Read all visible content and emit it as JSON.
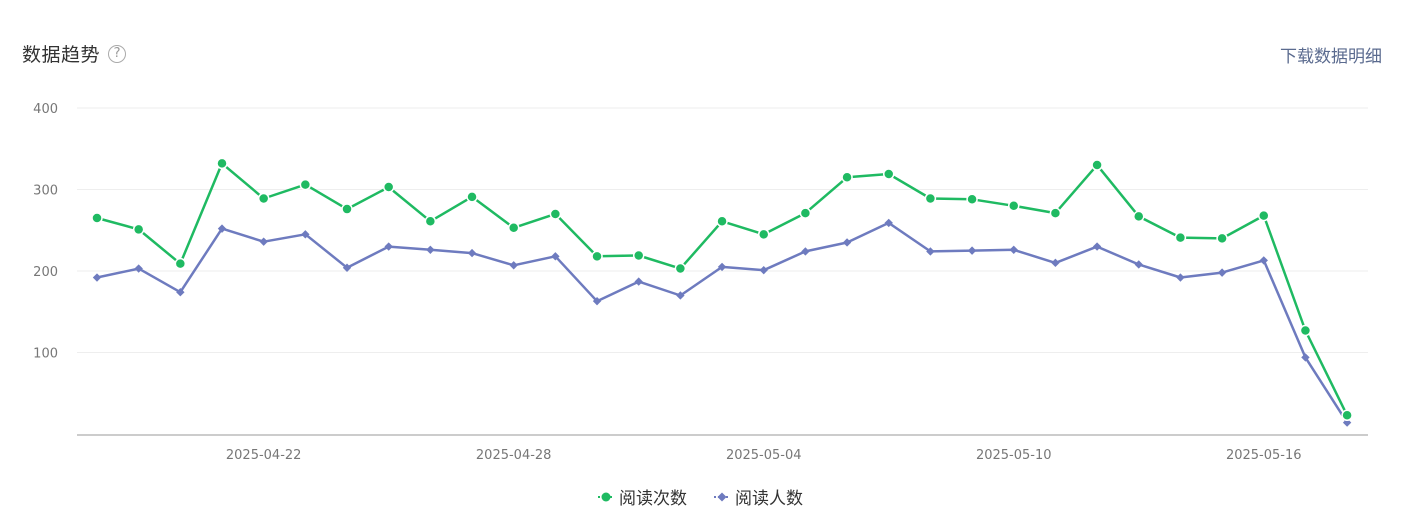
{
  "header": {
    "title": "数据趋势",
    "help_glyph": "?",
    "download_label": "下载数据明细"
  },
  "colors": {
    "series1": "#1fba62",
    "series2": "#6e7bbf",
    "grid": "#eeeeee",
    "axis": "#cccccc"
  },
  "chart_data": {
    "type": "line",
    "x": [
      "2025-04-18",
      "2025-04-19",
      "2025-04-20",
      "2025-04-21",
      "2025-04-22",
      "2025-04-23",
      "2025-04-24",
      "2025-04-25",
      "2025-04-26",
      "2025-04-27",
      "2025-04-28",
      "2025-04-29",
      "2025-04-30",
      "2025-05-01",
      "2025-05-02",
      "2025-05-03",
      "2025-05-04",
      "2025-05-05",
      "2025-05-06",
      "2025-05-07",
      "2025-05-08",
      "2025-05-09",
      "2025-05-10",
      "2025-05-11",
      "2025-05-12",
      "2025-05-13",
      "2025-05-14",
      "2025-05-15",
      "2025-05-16",
      "2025-05-17",
      "2025-05-18"
    ],
    "x_tick_labels": [
      "2025-04-22",
      "2025-04-28",
      "2025-05-04",
      "2025-05-10",
      "2025-05-16"
    ],
    "x_tick_indices": [
      4,
      10,
      16,
      22,
      28
    ],
    "y_ticks": [
      100,
      200,
      300,
      400
    ],
    "ylim": [
      0,
      400
    ],
    "grid": true,
    "legend_position": "bottom-center",
    "series": [
      {
        "name": "阅读次数",
        "marker": "circle",
        "values": [
          265,
          251,
          209,
          332,
          289,
          306,
          276,
          303,
          261,
          291,
          253,
          270,
          218,
          219,
          203,
          261,
          245,
          271,
          315,
          319,
          289,
          288,
          280,
          271,
          330,
          267,
          241,
          240,
          268,
          127,
          23
        ]
      },
      {
        "name": "阅读人数",
        "marker": "diamond",
        "values": [
          192,
          203,
          174,
          252,
          236,
          245,
          204,
          230,
          226,
          222,
          207,
          218,
          163,
          187,
          170,
          205,
          201,
          224,
          235,
          259,
          224,
          225,
          226,
          210,
          230,
          208,
          192,
          198,
          213,
          94,
          14
        ]
      }
    ]
  }
}
